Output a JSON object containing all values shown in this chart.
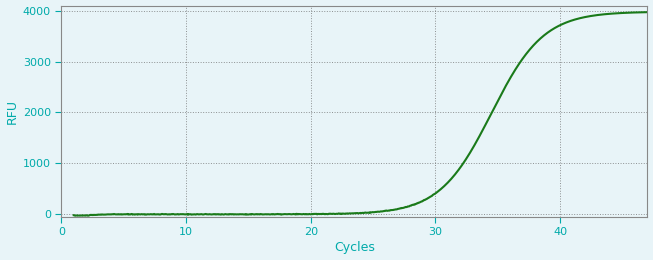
{
  "title": "",
  "xlabel": "Cycles",
  "ylabel": "RFU",
  "xlim": [
    0,
    47
  ],
  "ylim": [
    -50,
    4100
  ],
  "xticks": [
    0,
    10,
    20,
    30,
    40
  ],
  "yticks": [
    0,
    1000,
    2000,
    3000,
    4000
  ],
  "background_color": "#e8f4f8",
  "plot_bg_color": "#e8f4f8",
  "grid_color": "#666666",
  "line_color": "#1a7a1a",
  "line_width": 1.5,
  "tick_label_color": "#00aaaa",
  "axis_label_color": "#00aaaa",
  "spine_color": "#888888",
  "sigmoid_L": 3980,
  "sigmoid_k": 0.48,
  "sigmoid_x0": 34.5,
  "x_start": 1,
  "x_end": 47,
  "xlabel_fontsize": 9,
  "ylabel_fontsize": 9,
  "tick_fontsize": 8
}
